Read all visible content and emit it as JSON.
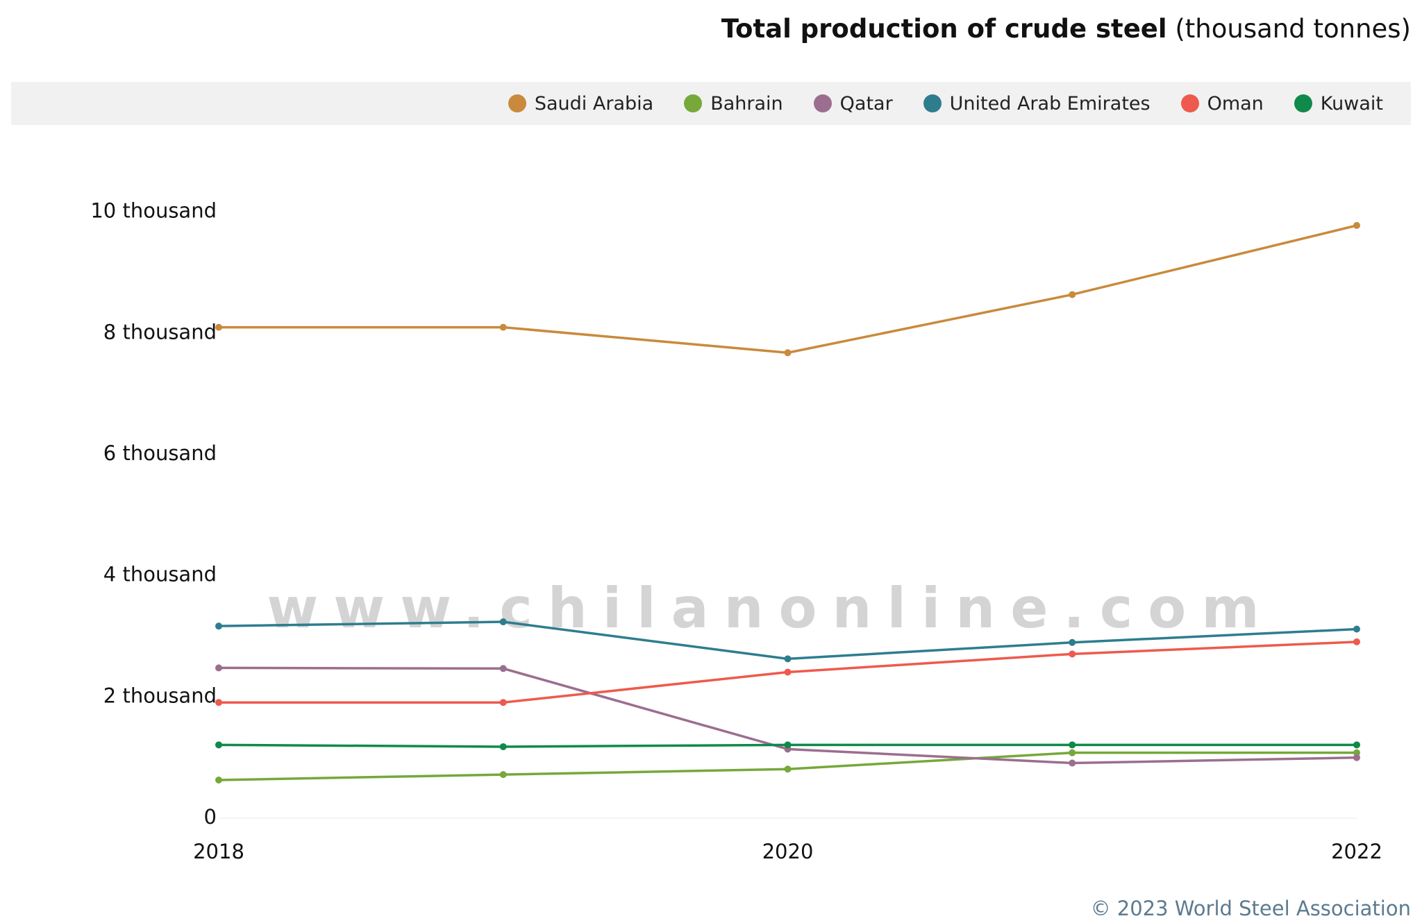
{
  "chart_data": {
    "type": "line",
    "title": "Total production of crude steel",
    "title_unit": "(thousand tonnes)",
    "x": [
      2018,
      2019,
      2020,
      2021,
      2022
    ],
    "xlim": [
      2018,
      2022
    ],
    "xticks": [
      2018,
      2020,
      2022
    ],
    "ylim": [
      0,
      10500
    ],
    "yticks": [
      0,
      {
        "value": 2000,
        "label": "2 thousand"
      },
      {
        "value": 4000,
        "label": "4 thousand"
      },
      {
        "value": 6000,
        "label": "6 thousand"
      },
      {
        "value": 8000,
        "label": "8 thousand"
      },
      {
        "value": 10000,
        "label": "10 thousand"
      }
    ],
    "grid": false,
    "legend": "top-right",
    "series": [
      {
        "name": "Saudi Arabia",
        "color": "#c98a3c",
        "values": [
          8100,
          8100,
          7680,
          8640,
          9780
        ]
      },
      {
        "name": "Bahrain",
        "color": "#76a83a",
        "values": [
          630,
          720,
          810,
          1080,
          1080
        ]
      },
      {
        "name": "Qatar",
        "color": "#9b6e8f",
        "values": [
          2480,
          2470,
          1140,
          910,
          1000
        ]
      },
      {
        "name": "United Arab Emirates",
        "color": "#2e7d8f",
        "values": [
          3170,
          3240,
          2630,
          2900,
          3120
        ]
      },
      {
        "name": "Oman",
        "color": "#ee5a4d",
        "values": [
          1910,
          1910,
          2410,
          2710,
          2910
        ]
      },
      {
        "name": "Kuwait",
        "color": "#0f8a4a",
        "values": [
          1210,
          1180,
          1210,
          1210,
          1210
        ]
      }
    ],
    "source": "© 2023 World Steel Association",
    "watermark": "www.chilanonline.com"
  }
}
